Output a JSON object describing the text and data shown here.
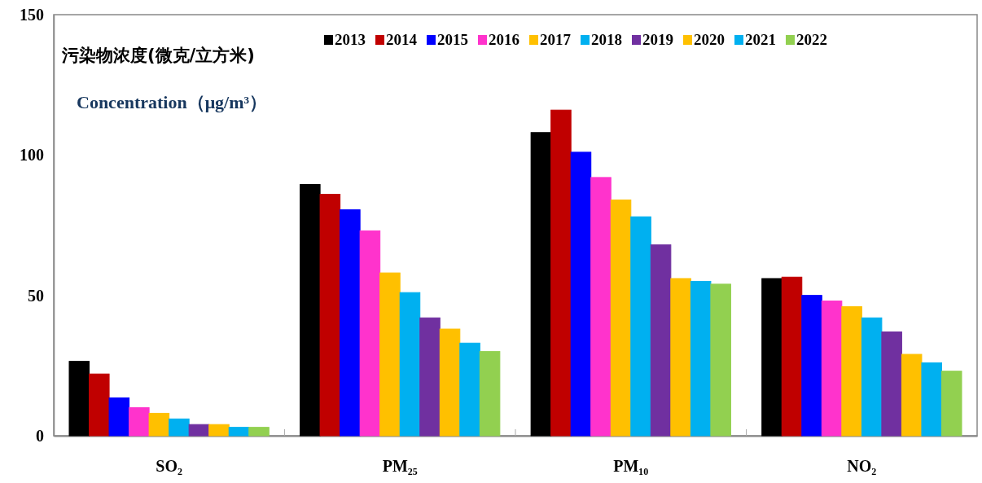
{
  "chart_data": {
    "type": "bar",
    "title": "污染物浓度(微克/立方米)",
    "subtitle": "Concentration（μg/m³）",
    "categories": [
      "SO₂",
      "PM₂₅",
      "PM₁₀",
      "NO₂"
    ],
    "series": [
      {
        "name": "2013",
        "color": "#000000",
        "values": [
          26.5,
          89.5,
          108,
          56
        ]
      },
      {
        "name": "2014",
        "color": "#c00000",
        "values": [
          22,
          86,
          116,
          56.5
        ]
      },
      {
        "name": "2015",
        "color": "#0000ff",
        "values": [
          13.5,
          80.5,
          101,
          50
        ]
      },
      {
        "name": "2016",
        "color": "#ff33cc",
        "values": [
          10,
          73,
          92,
          48
        ]
      },
      {
        "name": "2017",
        "color": "#ffc000",
        "values": [
          8,
          58,
          84,
          46
        ]
      },
      {
        "name": "2018",
        "color": "#00b0f0",
        "values": [
          6,
          51,
          78,
          42
        ]
      },
      {
        "name": "2019",
        "color": "#7030a0",
        "values": [
          4,
          42,
          68,
          37
        ]
      },
      {
        "name": "2020",
        "color": "#ffc000",
        "values": [
          4,
          38,
          56,
          29
        ]
      },
      {
        "name": "2021",
        "color": "#00b0f0",
        "values": [
          3,
          33,
          55,
          26
        ]
      },
      {
        "name": "2022",
        "color": "#92d050",
        "values": [
          3,
          30,
          54,
          23
        ]
      }
    ],
    "ylim": [
      0,
      150
    ],
    "yticks": [
      0,
      50,
      100,
      150
    ],
    "grid": false,
    "legend": "top"
  }
}
